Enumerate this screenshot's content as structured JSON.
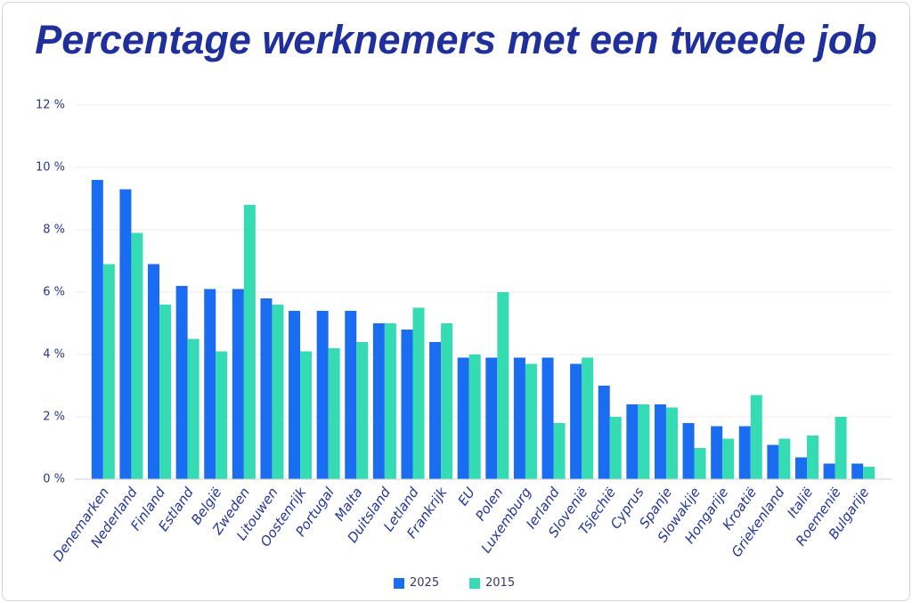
{
  "chart_data": {
    "type": "bar",
    "title": "Percentage werknemers met een tweede job",
    "xlabel": "",
    "ylabel": "",
    "categories": [
      "Denemarken",
      "Nederland",
      "Finland",
      "Estland",
      "België",
      "Zweden",
      "Litouwen",
      "Oostenrijk",
      "Portugal",
      "Malta",
      "Duitsland",
      "Letland",
      "Frankrijk",
      "EU",
      "Polen",
      "Luxemburg",
      "Ierland",
      "Slovenië",
      "Tsjechië",
      "Cyprus",
      "Spanje",
      "Slowakije",
      "Hongarije",
      "Kroatië",
      "Griekenland",
      "Italië",
      "Roemenië",
      "Bulgarije"
    ],
    "series": [
      {
        "name": "2025",
        "color": "#1a6cf0",
        "values": [
          9.6,
          9.3,
          6.9,
          6.2,
          6.1,
          6.1,
          5.8,
          5.4,
          5.4,
          5.4,
          5.0,
          4.8,
          4.4,
          3.9,
          3.9,
          3.9,
          3.9,
          3.7,
          3.0,
          2.4,
          2.4,
          1.8,
          1.7,
          1.7,
          1.1,
          0.7,
          0.5,
          0.5
        ]
      },
      {
        "name": "2015",
        "color": "#34dbb3",
        "values": [
          6.9,
          7.9,
          5.6,
          4.5,
          4.1,
          8.8,
          5.6,
          4.1,
          4.2,
          4.4,
          5.0,
          5.5,
          5.0,
          4.0,
          6.0,
          3.7,
          1.8,
          3.9,
          2.0,
          2.4,
          2.3,
          1.0,
          1.3,
          2.7,
          1.3,
          1.4,
          2.0,
          0.4
        ]
      }
    ],
    "ylim": [
      0,
      12
    ],
    "y_ticks": [
      0,
      2,
      4,
      6,
      8,
      10,
      12
    ],
    "y_tick_labels": [
      "0 %",
      "2 %",
      "4 %",
      "6 %",
      "8 %",
      "10 %",
      "12 %"
    ],
    "grid": true,
    "legend": "bottom-center",
    "colors": {
      "title": "#1f2f9c",
      "gridline": "#ececec",
      "baseline": "#cfcfcf"
    }
  }
}
